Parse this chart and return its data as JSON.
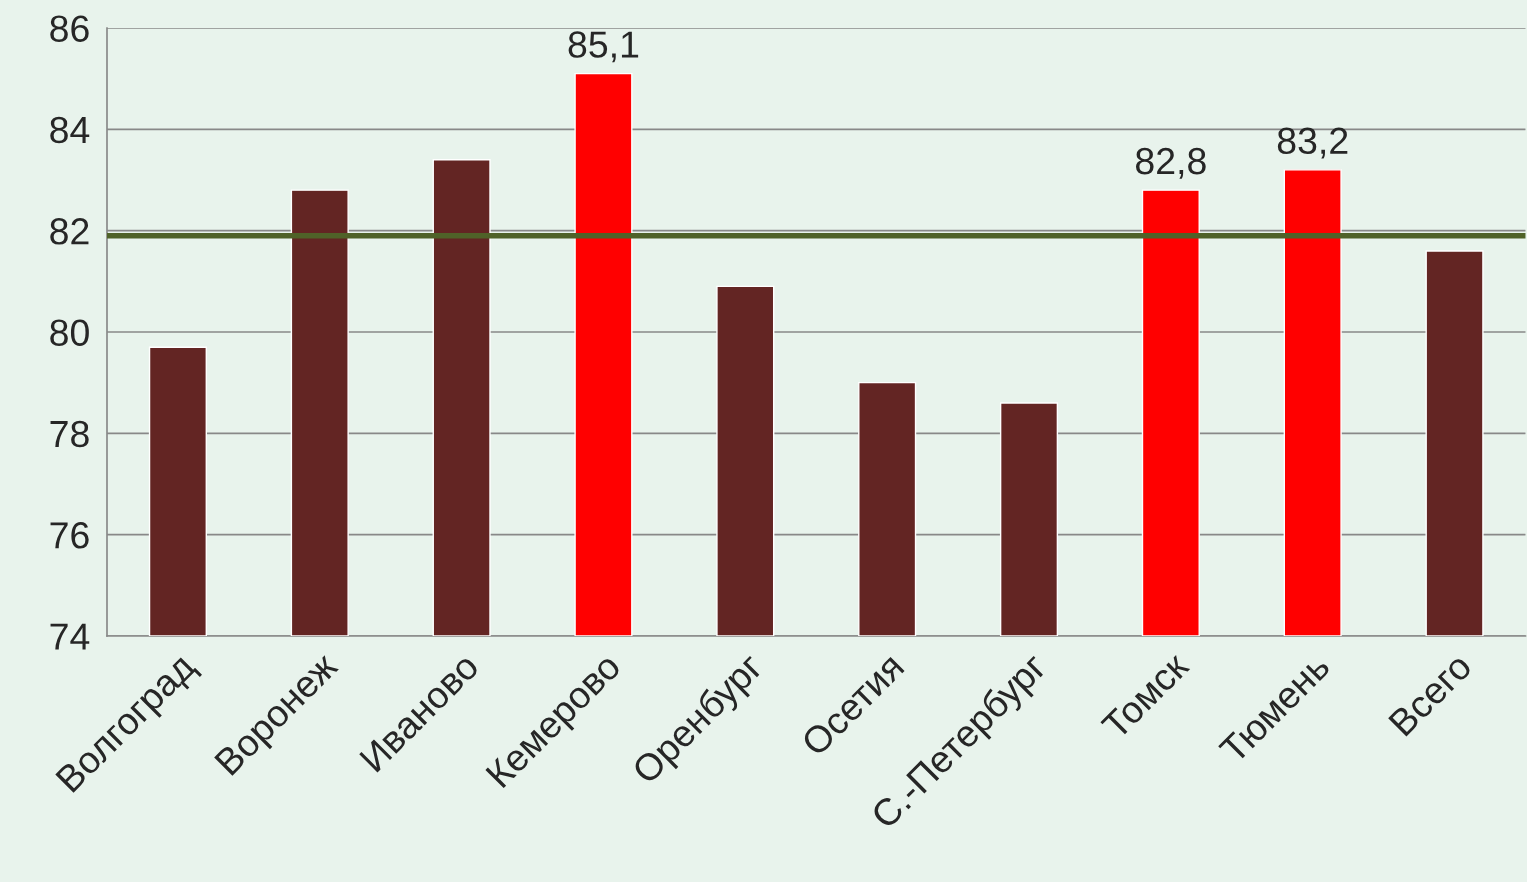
{
  "chart_data": {
    "type": "bar",
    "categories": [
      "Волгоград",
      "Воронеж",
      "Иваново",
      "Кемерово",
      "Оренбург",
      "Осетия",
      "С.-Петербург",
      "Томск",
      "Тюмень",
      "Всего"
    ],
    "values": [
      79.7,
      82.8,
      83.4,
      85.1,
      80.9,
      79.0,
      78.6,
      82.8,
      83.2,
      81.6
    ],
    "colors": [
      "#632523",
      "#632523",
      "#632523",
      "#ff0000",
      "#632523",
      "#632523",
      "#632523",
      "#ff0000",
      "#ff0000",
      "#632523"
    ],
    "value_labels": [
      null,
      null,
      null,
      "85,1",
      null,
      null,
      null,
      "82,8",
      "83,2",
      null
    ],
    "ylim": [
      74,
      86
    ],
    "yticks": [
      74,
      76,
      78,
      80,
      82,
      84,
      86
    ],
    "ref_lines": [
      {
        "axis": "y",
        "value": 81.9,
        "color": "#4f6228"
      }
    ],
    "grid": "y"
  }
}
